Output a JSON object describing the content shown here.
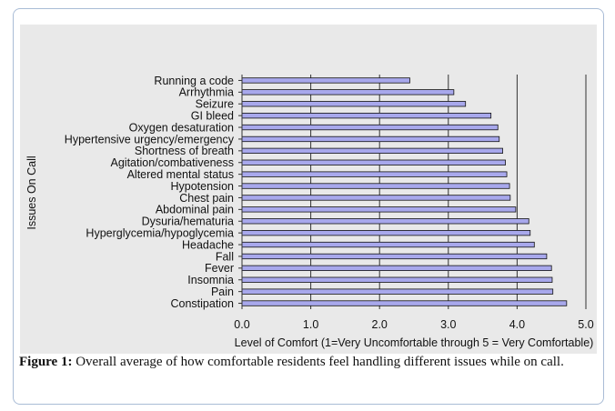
{
  "chart_data": {
    "type": "bar",
    "orientation": "horizontal",
    "ylabel": "Issues On Call",
    "xlabel": "Level of Comfort (1=Very Uncomfortable through 5 = Very Comfortable)",
    "xlim": [
      0,
      5
    ],
    "xticks": [
      "0.0",
      "1.0",
      "2.0",
      "3.0",
      "4.0",
      "5.0"
    ],
    "grid": "vertical",
    "bar_color": "#a8a8ec",
    "categories": [
      "Running a code",
      "Arrhythmia",
      "Seizure",
      "GI bleed",
      "Oxygen desaturation",
      "Hypertensive urgency/emergency",
      "Shortness of breath",
      "Agitation/combativeness",
      "Altered mental status",
      "Hypotension",
      "Chest pain",
      "Abdominal pain",
      "Dysuria/hematuria",
      "Hyperglycemia/hypoglycemia",
      "Headache",
      "Fall",
      "Fever",
      "Insomnia",
      "Pain",
      "Constipation"
    ],
    "values": [
      2.44,
      3.08,
      3.25,
      3.62,
      3.72,
      3.74,
      3.79,
      3.83,
      3.85,
      3.89,
      3.9,
      3.98,
      4.17,
      4.19,
      4.25,
      4.43,
      4.5,
      4.51,
      4.52,
      4.72
    ]
  },
  "caption": {
    "label": "Figure 1:",
    "text": " Overall average of how comfortable residents feel handling different issues while on call."
  }
}
